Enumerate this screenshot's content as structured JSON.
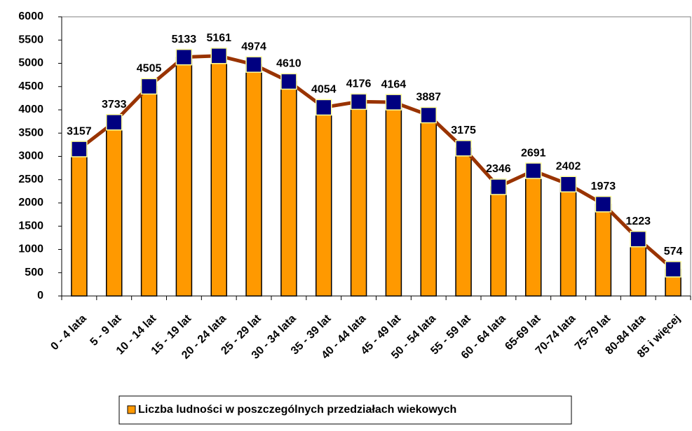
{
  "chart_data": {
    "type": "bar",
    "categories": [
      "0 - 4 lata",
      "5 - 9 lat",
      "10 - 14 lat",
      "15 - 19 lat",
      "20 - 24 lata",
      "25 - 29 lat",
      "30 - 34 lata",
      "35 - 39 lat",
      "40 - 44 lata",
      "45 - 49 lat",
      "50 - 54 lata",
      "55 - 59 lat",
      "60 - 64 lata",
      "65-69 lat",
      "70-74 lata",
      "75-79 lat",
      "80-84 lata",
      "85 i więcej"
    ],
    "series": [
      {
        "name": "Liczba ludności w poszczególnych przedziałach wiekowych",
        "color": "#ff9900",
        "values": [
          3157,
          3733,
          4505,
          5133,
          5161,
          4974,
          4610,
          4054,
          4176,
          4164,
          3887,
          3175,
          2346,
          2691,
          2402,
          1973,
          1223,
          574
        ]
      }
    ],
    "line_color": "#993300",
    "marker_color": "#000080",
    "marker_edge_color": "#ffff99",
    "ylim": [
      0,
      6000
    ],
    "yticks": [
      0,
      500,
      1000,
      1500,
      2000,
      2500,
      3000,
      3500,
      4000,
      4500,
      5000,
      5500,
      6000
    ],
    "grid": false,
    "legend": "bottom"
  }
}
